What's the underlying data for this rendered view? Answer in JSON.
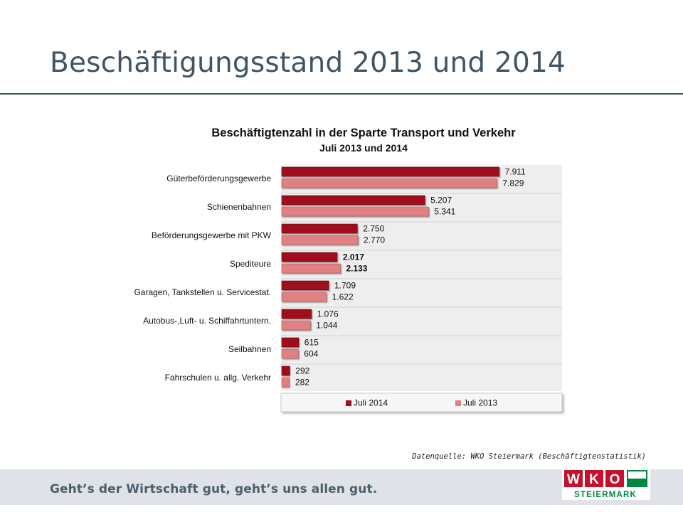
{
  "slide": {
    "title": "Beschäftigungsstand 2013 und 2014",
    "source": "Datenquelle: WKO Steiermark (Beschäftigtenstatistik)"
  },
  "footer": {
    "slogan": "Geht’s der Wirtschaft gut, geht’s uns allen gut.",
    "logo_text": "WKO",
    "logo_subtext": "STEIERMARK",
    "logo_letters": [
      "W",
      "K",
      "O"
    ]
  },
  "colors": {
    "title": "#3f5566",
    "series_2014": "#a0111a",
    "series_2013": "#e08082",
    "plot_background": "#eeeeee",
    "logo_red": "#c8102e",
    "logo_green": "#00883f"
  },
  "chart_data": {
    "type": "bar",
    "orientation": "horizontal",
    "title": "Beschäftigtenzahl in der Sparte Transport und Verkehr",
    "subtitle": "Juli 2013 und 2014",
    "categories": [
      "Güterbeförderungsgewerbe",
      "Schienenbahnen",
      "Beförderungsgewerbe mit PKW",
      "Spediteure",
      "Garagen, Tankstellen u. Servicestat.",
      "Autobus-,Luft- u. Schiffahrtuntern.",
      "Seilbahnen",
      "Fahrschulen u. allg. Verkehr"
    ],
    "series": [
      {
        "name": "Juli 2014",
        "values": [
          7911,
          5207,
          2750,
          2017,
          1709,
          1076,
          615,
          292
        ],
        "labels": [
          "7.911",
          "5.207",
          "2.750",
          "2.017",
          "1.709",
          "1.076",
          "615",
          "292"
        ]
      },
      {
        "name": "Juli 2013",
        "values": [
          7829,
          5341,
          2770,
          2133,
          1622,
          1044,
          604,
          282
        ],
        "labels": [
          "7.829",
          "5.341",
          "2.770",
          "2.133",
          "1.622",
          "1.044",
          "604",
          "282"
        ]
      }
    ],
    "highlighted_category": "Spediteure",
    "xlim": [
      0,
      8000
    ],
    "grid": true,
    "legend_position": "bottom"
  }
}
